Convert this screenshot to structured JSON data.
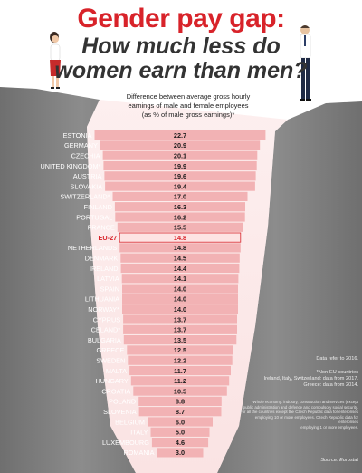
{
  "title_line1": "Gender pay gap:",
  "title_line2a": "How much less do",
  "title_line2b": "women earn than men?",
  "subtitle_lines": [
    "Difference between average gross hourly",
    "earnings of male and female employees",
    "(as % of male gross earnings)*"
  ],
  "notes": {
    "data_year": "Data refer to 2016.",
    "non_eu_1": "*Non-EU countries",
    "non_eu_2": "Ireland, Italy, Switzerland: data from 2017.",
    "non_eu_3": "Greece: data from 2014.",
    "method_1": "*Whole economy: industry, construction and services (except",
    "method_2": "public administration and defence and compulsory social security.",
    "method_3": "For all the countries except the Czech Republic data for enterprises",
    "method_4": "employing 10 or more employees. Czech Republic data for enterprises",
    "method_5": "employing 1 or more employees.",
    "source": "Source: Eurostat"
  },
  "colors": {
    "title_red": "#d8232a",
    "bar_pink": "#f2b2b4",
    "highlight_red": "#d8232a",
    "rock": "#8a8a8a"
  },
  "chart_data": {
    "type": "bar",
    "orientation": "horizontal",
    "highlight": "EU-27",
    "categories": [
      "ESTONIA",
      "GERMANY",
      "CZECHIA",
      "UNITED KINGDOM*",
      "AUSTRIA",
      "SLOVAKIA",
      "SWITZERLAND*",
      "FINLAND",
      "PORTUGAL",
      "FRANCE",
      "EU-27",
      "NETHERLANDS",
      "DENMARK",
      "IRELAND",
      "LATVIA",
      "SPAIN",
      "LITHUANIA",
      "NORWAY*",
      "CYPRUS",
      "ICELAND*",
      "BULGARIA",
      "GREECE",
      "SWEDEN",
      "MALTA",
      "HUNGARY",
      "CROATIA",
      "POLAND",
      "SLOVENIA",
      "BELGIUM",
      "ITALY",
      "LUXEMBOURG",
      "ROMANIA"
    ],
    "values": [
      22.7,
      20.9,
      20.1,
      19.9,
      19.6,
      19.4,
      17.0,
      16.3,
      16.2,
      15.5,
      14.8,
      14.8,
      14.5,
      14.4,
      14.1,
      14.0,
      14.0,
      14.0,
      13.7,
      13.7,
      13.5,
      12.5,
      12.2,
      11.7,
      11.2,
      10.5,
      8.8,
      8.7,
      6.0,
      5.0,
      4.6,
      3.0
    ],
    "labels": [
      "22.7",
      "20.9",
      "20.1",
      "19.9",
      "19.6",
      "19.4",
      "17.0",
      "16.3",
      "16.2",
      "15.5",
      "14.8",
      "14.8",
      "14.5",
      "14.4",
      "14.1",
      "14.0",
      "14.0",
      "14.0",
      "13.7",
      "13.7",
      "13.5",
      "12.5",
      "12.2",
      "11.7",
      "11.2",
      "10.5",
      "8.8",
      "8.7",
      "6.0",
      "5.0",
      "4.6",
      "3.0"
    ],
    "unit": "%"
  }
}
